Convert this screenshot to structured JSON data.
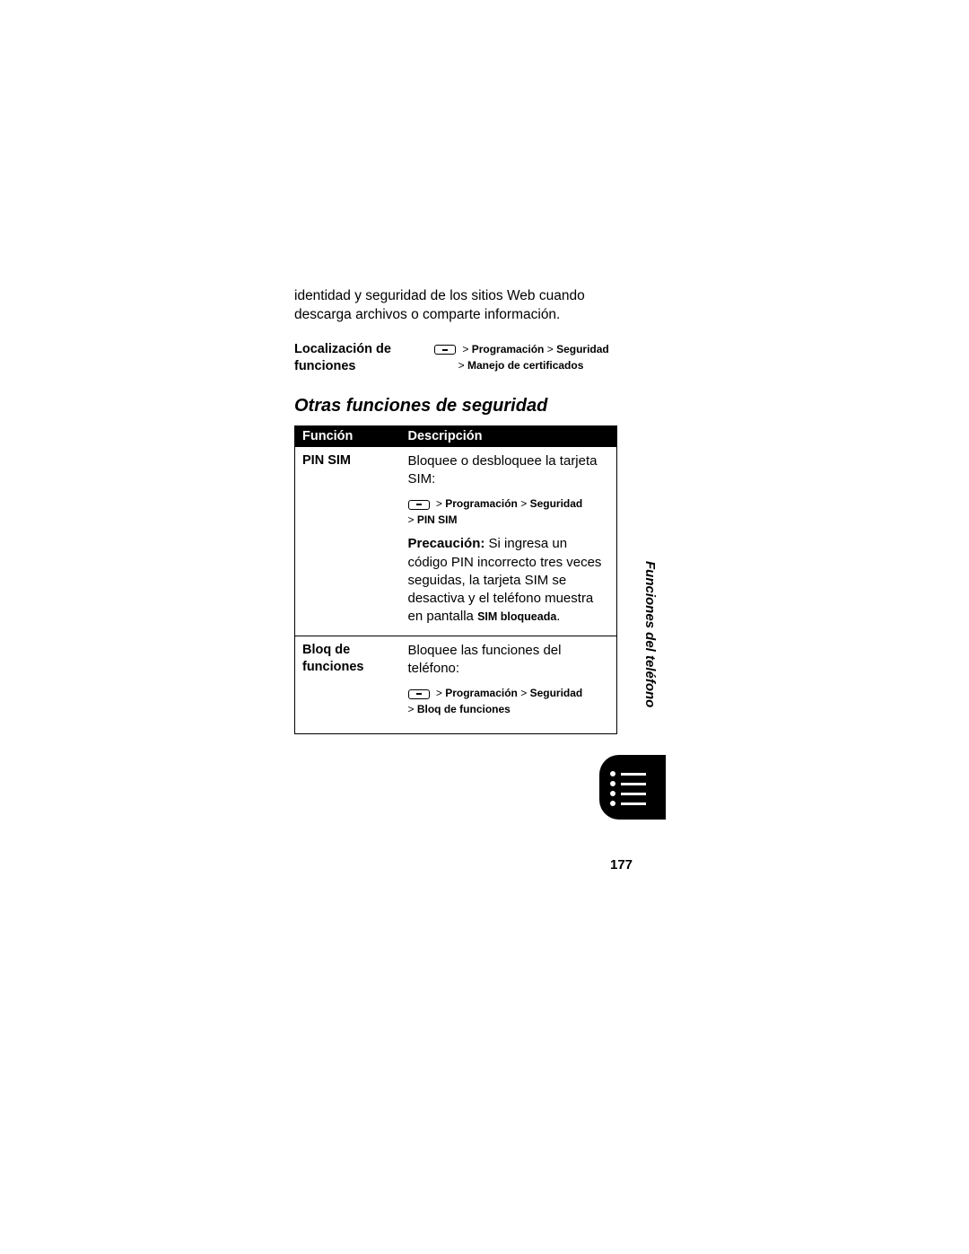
{
  "intro": "identidad y seguridad de los sitios Web cuando descarga archivos o comparte información.",
  "location": {
    "label": "Localización de funciones",
    "nav_parts": {
      "p1": "Programación",
      "p2": "Seguridad",
      "p3": "Manejo de certificados"
    }
  },
  "section_heading": "Otras funciones de seguridad",
  "table": {
    "header_func": "Función",
    "header_desc": "Descripción",
    "row1": {
      "func": "PIN SIM",
      "desc_intro": "Bloquee o desbloquee la tarjeta SIM:",
      "nav": {
        "p1": "Programación",
        "p2": "Seguridad",
        "p3": "PIN SIM"
      },
      "caution_label": "Precaución:",
      "caution_text": " Si ingresa un código PIN incorrecto tres veces seguidas, la tarjeta SIM se desactiva y el teléfono muestra en pantalla ",
      "caution_bold": "SIM bloqueada"
    },
    "row2": {
      "func": "Bloq de funciones",
      "desc_intro": "Bloquee las funciones del teléfono:",
      "nav": {
        "p1": "Programación",
        "p2": "Seguridad",
        "p3": "Bloq de funciones"
      }
    }
  },
  "side_label": "Funciones del teléfono",
  "page_number": "177",
  "colors": {
    "bg": "#ffffff",
    "text": "#000000",
    "table_header_bg": "#000000",
    "table_header_fg": "#ffffff"
  }
}
